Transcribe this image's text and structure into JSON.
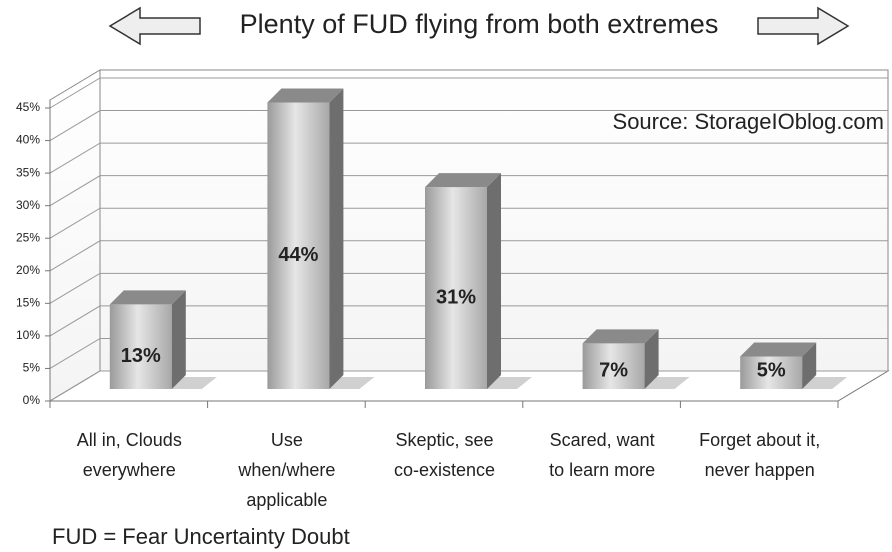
{
  "chart_data": {
    "type": "bar3d",
    "title": "Plenty of FUD flying from both extremes",
    "annotation": "Source: StorageIOblog.com",
    "footnote": "FUD = Fear Uncertainty Doubt",
    "categories": [
      "All in, Clouds everywhere",
      "Use when/where applicable",
      "Skeptic, see co-existence",
      "Scared, want to learn more",
      "Forget about it, never happen"
    ],
    "values": [
      13,
      44,
      31,
      7,
      5
    ],
    "value_labels": [
      "13%",
      "44%",
      "31%",
      "7%",
      "5%"
    ],
    "color": "#b0b0b0",
    "ylim": [
      0,
      45
    ],
    "yticks": [
      {
        "value": 0,
        "label": "0%"
      },
      {
        "value": 5,
        "label": "5%"
      },
      {
        "value": 10,
        "label": "10%"
      },
      {
        "value": 15,
        "label": "15%"
      },
      {
        "value": 20,
        "label": "20%"
      },
      {
        "value": 25,
        "label": "25%"
      },
      {
        "value": 30,
        "label": "30%"
      },
      {
        "value": 35,
        "label": "35%"
      },
      {
        "value": 40,
        "label": "40%"
      },
      {
        "value": 45,
        "label": "45%"
      }
    ],
    "grid": true
  }
}
